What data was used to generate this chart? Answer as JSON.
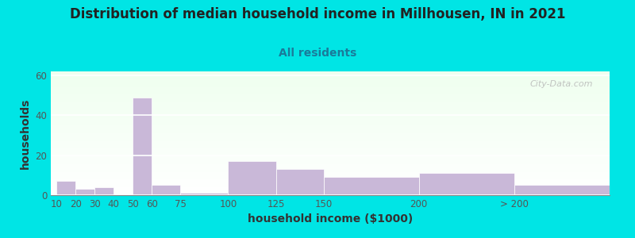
{
  "title": "Distribution of median household income in Millhousen, IN in 2021",
  "subtitle": "All residents",
  "xlabel": "household income ($1000)",
  "ylabel": "households",
  "bar_labels": [
    "10",
    "20",
    "30",
    "40",
    "50",
    "60",
    "75",
    "100",
    "125",
    "150",
    "200",
    "> 200"
  ],
  "bar_values": [
    7,
    3,
    4,
    0,
    49,
    5,
    1,
    17,
    13,
    9,
    11,
    5
  ],
  "bar_color": "#c9b8d8",
  "ylim": [
    0,
    62
  ],
  "yticks": [
    0,
    20,
    40,
    60
  ],
  "background_color": "#00e5e5",
  "plot_bg_top": "#efffef",
  "plot_bg_bottom": "#ffffff",
  "title_fontsize": 12,
  "subtitle_fontsize": 10,
  "axis_label_fontsize": 10,
  "tick_fontsize": 8.5,
  "watermark_text": "City-Data.com",
  "watermark_color": "#b8b8b8",
  "x_positions": [
    10,
    20,
    30,
    40,
    50,
    60,
    75,
    100,
    125,
    150,
    200,
    250
  ],
  "bar_widths": [
    10,
    10,
    10,
    10,
    10,
    15,
    25,
    25,
    25,
    50,
    50,
    50
  ],
  "tick_positions": [
    10,
    20,
    30,
    40,
    50,
    60,
    75,
    100,
    125,
    150,
    200,
    250
  ],
  "xlim": [
    7,
    300
  ]
}
